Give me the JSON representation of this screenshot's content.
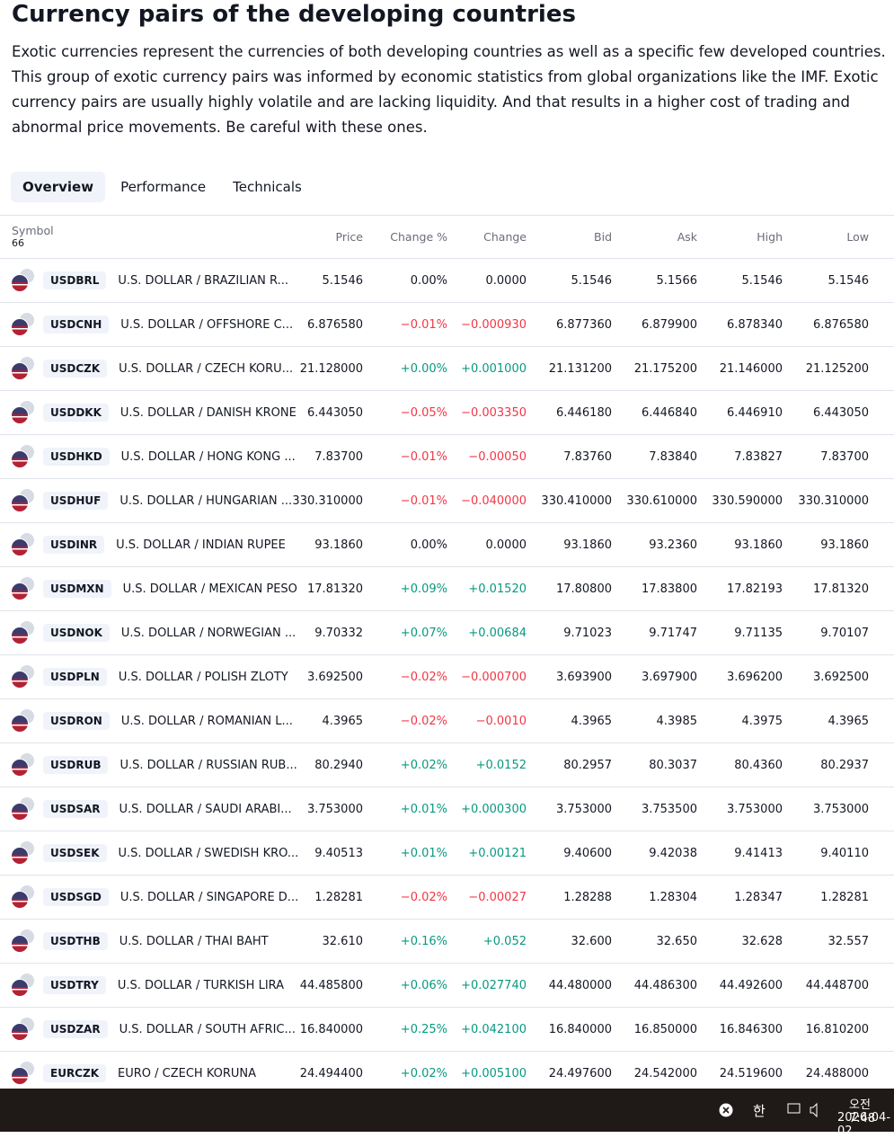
{
  "header": {
    "title": "Currency pairs of the developing countries",
    "description": "Exotic currencies represent the currencies of both developing countries as well as a specific few developed countries. This group of exotic currency pairs was informed by economic statistics from global organizations like the IMF. Exotic currency pairs are usually highly volatile and are lacking liquidity. And that results in a higher cost of trading and abnormal price movements. Be careful with these ones."
  },
  "tabs": [
    "Overview",
    "Performance",
    "Technicals"
  ],
  "table": {
    "symbol_header": "Symbol",
    "count": "66",
    "columns": [
      "Price",
      "Change %",
      "Change",
      "Bid",
      "Ask",
      "High",
      "Low"
    ],
    "rows": [
      {
        "ticker": "USDBRL",
        "name": "U.S. DOLLAR / BRAZILIAN R...",
        "change_color": "#131722",
        "cells": [
          "5.1546",
          "0.00%",
          "0.0000",
          "5.1546",
          "5.1566",
          "5.1546",
          "5.1546"
        ]
      },
      {
        "ticker": "USDCNH",
        "name": "U.S. DOLLAR / OFFSHORE C...",
        "change_color": "#f23645",
        "cells": [
          "6.876580",
          "−0.01%",
          "−0.000930",
          "6.877360",
          "6.879900",
          "6.878340",
          "6.876580"
        ]
      },
      {
        "ticker": "USDCZK",
        "name": "U.S. DOLLAR / CZECH KORU...",
        "change_color": "#089981",
        "cells": [
          "21.128000",
          "+0.00%",
          "+0.001000",
          "21.131200",
          "21.175200",
          "21.146000",
          "21.125200"
        ]
      },
      {
        "ticker": "USDDKK",
        "name": "U.S. DOLLAR / DANISH KRONE",
        "change_color": "#f23645",
        "cells": [
          "6.443050",
          "−0.05%",
          "−0.003350",
          "6.446180",
          "6.446840",
          "6.446910",
          "6.443050"
        ]
      },
      {
        "ticker": "USDHKD",
        "name": "U.S. DOLLAR / HONG KONG ...",
        "change_color": "#f23645",
        "cells": [
          "7.83700",
          "−0.01%",
          "−0.00050",
          "7.83760",
          "7.83840",
          "7.83827",
          "7.83700"
        ]
      },
      {
        "ticker": "USDHUF",
        "name": "U.S. DOLLAR / HUNGARIAN ...",
        "change_color": "#f23645",
        "cells": [
          "330.310000",
          "−0.01%",
          "−0.040000",
          "330.410000",
          "330.610000",
          "330.590000",
          "330.310000"
        ]
      },
      {
        "ticker": "USDINR",
        "name": "U.S. DOLLAR / INDIAN RUPEE",
        "change_color": "#131722",
        "cells": [
          "93.1860",
          "0.00%",
          "0.0000",
          "93.1860",
          "93.2360",
          "93.1860",
          "93.1860"
        ]
      },
      {
        "ticker": "USDMXN",
        "name": "U.S. DOLLAR / MEXICAN PESO",
        "change_color": "#089981",
        "cells": [
          "17.81320",
          "+0.09%",
          "+0.01520",
          "17.80800",
          "17.83800",
          "17.82193",
          "17.81320"
        ]
      },
      {
        "ticker": "USDNOK",
        "name": "U.S. DOLLAR / NORWEGIAN ...",
        "change_color": "#089981",
        "cells": [
          "9.70332",
          "+0.07%",
          "+0.00684",
          "9.71023",
          "9.71747",
          "9.71135",
          "9.70107"
        ]
      },
      {
        "ticker": "USDPLN",
        "name": "U.S. DOLLAR / POLISH ZLOTY",
        "change_color": "#f23645",
        "cells": [
          "3.692500",
          "−0.02%",
          "−0.000700",
          "3.693900",
          "3.697900",
          "3.696200",
          "3.692500"
        ]
      },
      {
        "ticker": "USDRON",
        "name": "U.S. DOLLAR / ROMANIAN L...",
        "change_color": "#f23645",
        "cells": [
          "4.3965",
          "−0.02%",
          "−0.0010",
          "4.3965",
          "4.3985",
          "4.3975",
          "4.3965"
        ]
      },
      {
        "ticker": "USDRUB",
        "name": "U.S. DOLLAR / RUSSIAN RUB...",
        "change_color": "#089981",
        "cells": [
          "80.2940",
          "+0.02%",
          "+0.0152",
          "80.2957",
          "80.3037",
          "80.4360",
          "80.2937"
        ]
      },
      {
        "ticker": "USDSAR",
        "name": "U.S. DOLLAR / SAUDI ARABI...",
        "change_color": "#089981",
        "cells": [
          "3.753000",
          "+0.01%",
          "+0.000300",
          "3.753000",
          "3.753500",
          "3.753000",
          "3.753000"
        ]
      },
      {
        "ticker": "USDSEK",
        "name": "U.S. DOLLAR / SWEDISH KRO...",
        "change_color": "#089981",
        "cells": [
          "9.40513",
          "+0.01%",
          "+0.00121",
          "9.40600",
          "9.42038",
          "9.41413",
          "9.40110"
        ]
      },
      {
        "ticker": "USDSGD",
        "name": "U.S. DOLLAR / SINGAPORE D...",
        "change_color": "#f23645",
        "cells": [
          "1.28281",
          "−0.02%",
          "−0.00027",
          "1.28288",
          "1.28304",
          "1.28347",
          "1.28281"
        ]
      },
      {
        "ticker": "USDTHB",
        "name": "U.S. DOLLAR / THAI BAHT",
        "change_color": "#089981",
        "cells": [
          "32.610",
          "+0.16%",
          "+0.052",
          "32.600",
          "32.650",
          "32.628",
          "32.557"
        ]
      },
      {
        "ticker": "USDTRY",
        "name": "U.S. DOLLAR / TURKISH LIRA",
        "change_color": "#089981",
        "cells": [
          "44.485800",
          "+0.06%",
          "+0.027740",
          "44.480000",
          "44.486300",
          "44.492600",
          "44.448700"
        ]
      },
      {
        "ticker": "USDZAR",
        "name": "U.S. DOLLAR / SOUTH AFRIC...",
        "change_color": "#089981",
        "cells": [
          "16.840000",
          "+0.25%",
          "+0.042100",
          "16.840000",
          "16.850000",
          "16.846300",
          "16.810200"
        ]
      },
      {
        "ticker": "EURCZK",
        "name": "EURO / CZECH KORUNA",
        "change_color": "#089981",
        "cells": [
          "24.494400",
          "+0.02%",
          "+0.005100",
          "24.497600",
          "24.542000",
          "24.519600",
          "24.488000"
        ]
      }
    ]
  },
  "taskbar": {
    "ime": "한",
    "time": "오전 7:48",
    "date": "2026-04-02"
  }
}
